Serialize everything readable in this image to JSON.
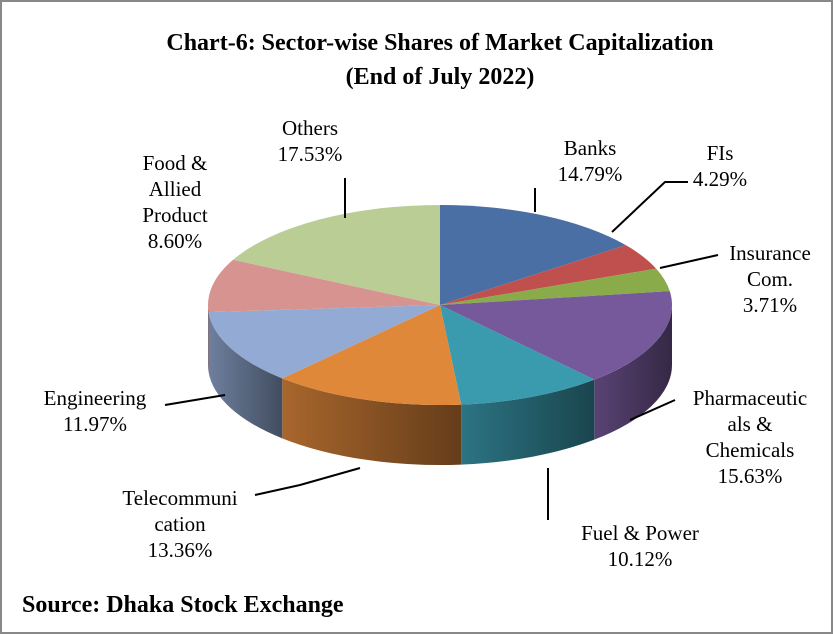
{
  "chart_data": {
    "type": "pie",
    "title": "Chart-6: Sector-wise Shares of Market Capitalization",
    "subtitle": "(End of  July 2022)",
    "categories": [
      [
        "Banks"
      ],
      [
        "FIs"
      ],
      [
        "Insurance",
        "Com."
      ],
      [
        "Pharmaceutic",
        "als &",
        "Chemicals"
      ],
      [
        "Fuel & Power"
      ],
      [
        "Telecommuni",
        "cation"
      ],
      [
        "Engineering"
      ],
      [
        "Food &",
        "Allied",
        "Product"
      ],
      [
        "Others"
      ]
    ],
    "values": [
      14.79,
      4.29,
      3.71,
      15.63,
      10.12,
      13.36,
      11.97,
      8.6,
      17.53
    ],
    "value_labels": [
      "14.79%",
      "4.29%",
      "3.71%",
      "15.63%",
      "10.12%",
      "13.36%",
      "11.97%",
      "8.60%",
      "17.53%"
    ],
    "colors": [
      "#4a6fa5",
      "#c0504d",
      "#8aab4a",
      "#76599a",
      "#3a9aae",
      "#e0883a",
      "#93aad4",
      "#d69390",
      "#b9cd95"
    ],
    "source": "Source: Dhaka Stock Exchange"
  }
}
